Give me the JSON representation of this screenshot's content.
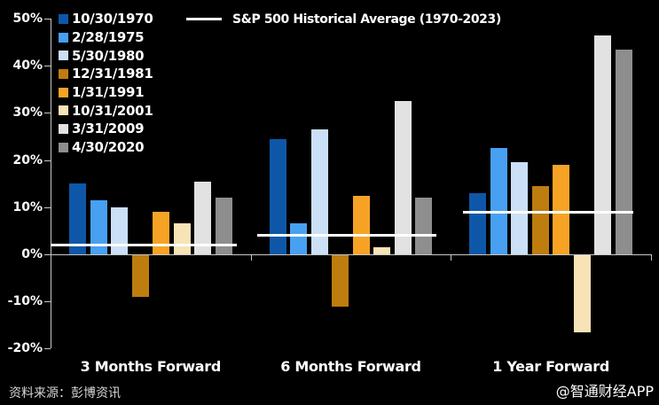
{
  "chart_data": {
    "type": "bar",
    "categories": [
      "3 Months Forward",
      "6 Months Forward",
      "1 Year Forward"
    ],
    "series": [
      {
        "name": "10/30/1970",
        "color": "#0E57A8",
        "values": [
          15,
          24.5,
          13
        ]
      },
      {
        "name": "2/28/1975",
        "color": "#47A0F2",
        "values": [
          11.5,
          6.5,
          22.5
        ]
      },
      {
        "name": "5/30/1980",
        "color": "#CBE0F7",
        "values": [
          10,
          26.5,
          19.5
        ]
      },
      {
        "name": "12/31/1981",
        "color": "#BE7D0E",
        "values": [
          -9,
          -11,
          14.5
        ]
      },
      {
        "name": "1/31/1991",
        "color": "#F6A325",
        "values": [
          9,
          12.5,
          19
        ]
      },
      {
        "name": "10/31/2001",
        "color": "#F8E3B6",
        "values": [
          6.5,
          1.5,
          -16.5
        ]
      },
      {
        "name": "3/31/2009",
        "color": "#E2E2E2",
        "values": [
          15.5,
          32.5,
          46.5
        ]
      },
      {
        "name": "4/30/2020",
        "color": "#8E8E8E",
        "values": [
          12,
          12,
          43.5
        ]
      }
    ],
    "average_line": {
      "label": "S&P 500 Historical Average (1970-2023)",
      "color": "#FFFFFF",
      "values": [
        2,
        4,
        9
      ]
    },
    "ylim": [
      -20,
      50
    ],
    "yticks": [
      50,
      40,
      30,
      20,
      10,
      0,
      -10,
      -20
    ],
    "ytick_suffix": "%",
    "grid": false,
    "legend_position": "top-left",
    "background_color": "#000000",
    "axis_color": "#C8C8C8",
    "text_color": "#FFFFFF"
  },
  "footer": {
    "source": "资料来源：彭博资讯",
    "watermark": "@智通财经APP"
  }
}
